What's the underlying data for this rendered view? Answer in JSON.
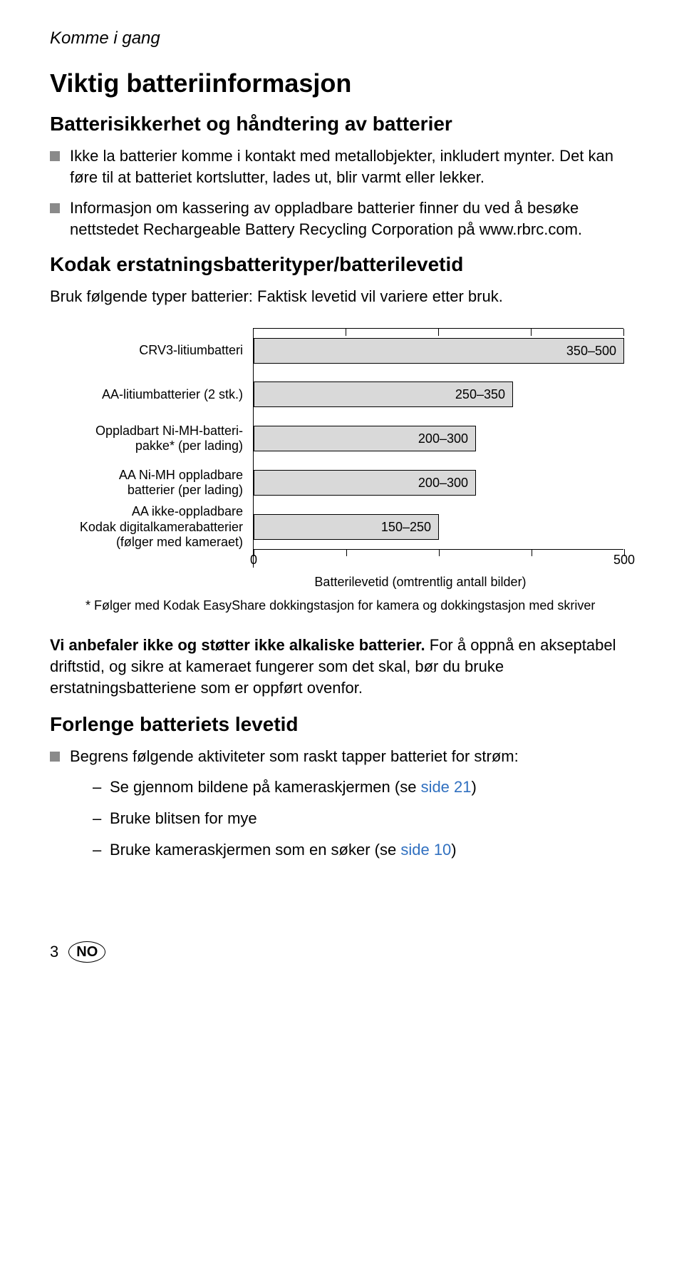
{
  "header": "Komme i gang",
  "title": "Viktig batteriinformasjon",
  "section1_heading": "Batterisikkerhet og håndtering av batterier",
  "bullets1": [
    "Ikke la batterier komme i kontakt med metallobjekter, inkludert mynter. Det kan føre til at batteriet kortslutter, lades ut, blir varmt eller lekker.",
    "Informasjon om kassering av oppladbare batterier finner du ved å besøke nettstedet Rechargeable Battery Recycling Corporation på www.rbrc.com."
  ],
  "section2_heading": "Kodak erstatningsbatterityper/batterilevetid",
  "section2_body": "Bruk følgende typer batterier: Faktisk levetid vil variere etter bruk.",
  "chart": {
    "xmax": 500,
    "tick_positions": [
      0,
      125,
      250,
      375,
      500
    ],
    "axis_start": "0",
    "axis_end": "500",
    "axis_title": "Batterilevetid (omtrentlig antall bilder)",
    "bar_color": "#d9d9d9",
    "bar_border": "#000000",
    "series": [
      {
        "label": "CRV3-litiumbatteri",
        "value": 500,
        "text": "350–500"
      },
      {
        "label": "AA-litiumbatterier (2 stk.)",
        "value": 350,
        "text": "250–350"
      },
      {
        "label": "Oppladbart Ni-MH-batteri-\npakke* (per lading)",
        "value": 300,
        "text": "200–300"
      },
      {
        "label": "AA Ni-MH oppladbare\nbatterier (per lading)",
        "value": 300,
        "text": "200–300"
      },
      {
        "label": "AA ikke-oppladbare\nKodak digitalkamerabatterier\n(følger med kameraet)",
        "value": 250,
        "text": "150–250"
      }
    ]
  },
  "footnote": "* Følger med Kodak EasyShare dokkingstasjon for kamera og dokkingstasjon med skriver",
  "warning_bold": "Vi anbefaler ikke og støtter ikke alkaliske batterier.",
  "warning_rest": " For å oppnå en akseptabel driftstid, og sikre at kameraet fungerer som det skal, bør du bruke erstatningsbatteriene som er oppført ovenfor.",
  "section3_heading": "Forlenge batteriets levetid",
  "bullets3_intro": "Begrens følgende aktiviteter som raskt tapper batteriet for strøm:",
  "dashes": [
    {
      "pre": "Se gjennom bildene på kameraskjermen (se ",
      "link": "side 21",
      "post": ")"
    },
    {
      "pre": "Bruke blitsen for mye",
      "link": "",
      "post": ""
    },
    {
      "pre": "Bruke kameraskjermen som en søker (se ",
      "link": "side 10",
      "post": ")"
    }
  ],
  "page_number": "3",
  "lang": "NO"
}
